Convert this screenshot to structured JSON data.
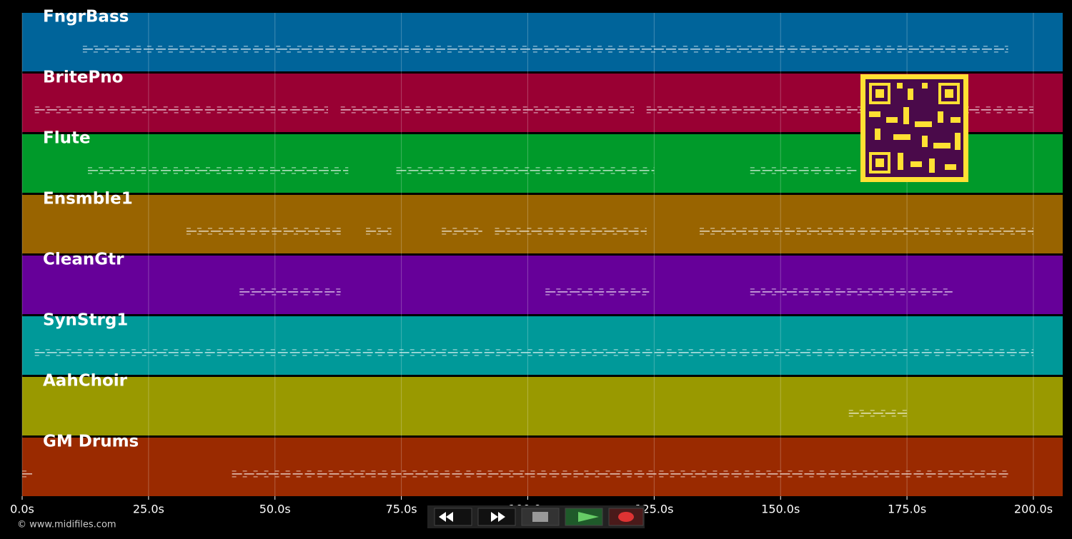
{
  "chart_data": {
    "type": "timeline",
    "xlim": [
      0,
      205.8
    ],
    "xticks": [
      {
        "value": 0,
        "label": "0.0s"
      },
      {
        "value": 25,
        "label": "25.0s"
      },
      {
        "value": 50,
        "label": "50.0s"
      },
      {
        "value": 75,
        "label": "75.0s"
      },
      {
        "value": 100,
        "label": "100.0s"
      },
      {
        "value": 125,
        "label": "125.0s"
      },
      {
        "value": 150,
        "label": "150.0s"
      },
      {
        "value": 175,
        "label": "175.0s"
      },
      {
        "value": 200,
        "label": "200.0s"
      }
    ],
    "grid": true,
    "tracks": [
      {
        "name": "FngrBass",
        "color": "#00649a",
        "spans": [
          [
            12,
            195
          ]
        ]
      },
      {
        "name": "BritePno",
        "color": "#990033",
        "spans": [
          [
            2.5,
            60.5
          ],
          [
            63,
            121
          ],
          [
            123.5,
            144
          ],
          [
            144,
            200
          ]
        ]
      },
      {
        "name": "Flute",
        "color": "#009a2a",
        "spans": [
          [
            13,
            64.5
          ],
          [
            74,
            125
          ],
          [
            144,
            165
          ]
        ]
      },
      {
        "name": "Ensmble1",
        "color": "#996400",
        "spans": [
          [
            32.5,
            63
          ],
          [
            68,
            73
          ],
          [
            83,
            91
          ],
          [
            93.5,
            123.5
          ],
          [
            134,
            200
          ]
        ]
      },
      {
        "name": "CleanGtr",
        "color": "#660099",
        "spans": [
          [
            43,
            63
          ],
          [
            103.5,
            124
          ],
          [
            144,
            184
          ]
        ]
      },
      {
        "name": "SynStrg1",
        "color": "#009999",
        "spans": [
          [
            2.5,
            200
          ]
        ]
      },
      {
        "name": "AahChoir",
        "color": "#999900",
        "spans": [
          [
            163.5,
            175
          ]
        ]
      },
      {
        "name": "GM Drums",
        "color": "#9a2a00",
        "spans": [
          [
            0,
            2
          ],
          [
            41.5,
            72.5
          ],
          [
            73,
            195
          ]
        ]
      }
    ]
  },
  "footer": "© www.midifiles.com"
}
